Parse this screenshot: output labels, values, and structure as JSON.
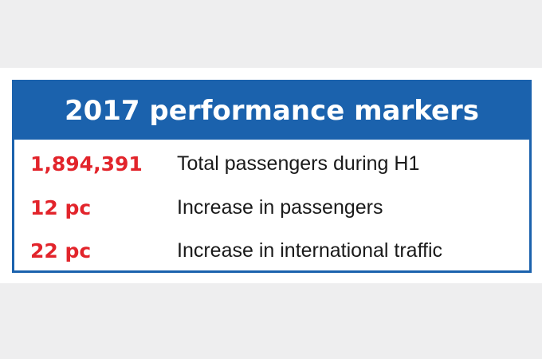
{
  "table": {
    "title": "2017 performance markers",
    "rows": [
      [
        "1,894,391",
        "Total passengers during H1"
      ],
      [
        "12 pc",
        "Increase in passengers"
      ],
      [
        "22 pc",
        "Increase in international traffic"
      ]
    ]
  }
}
